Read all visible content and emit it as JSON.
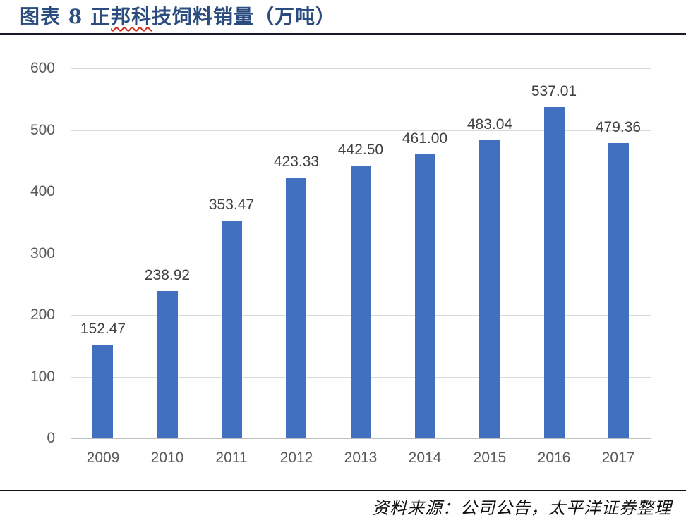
{
  "header": {
    "title_prefix": "图表 8 正",
    "title_misspelled": "邦科",
    "title_suffix": "技饲料销量（万吨）",
    "title_full": "图表 8 正邦科技饲料销量（万吨）"
  },
  "chart_data": {
    "type": "bar",
    "title": "图表 8 正邦科技饲料销量（万吨）",
    "unit": "万吨",
    "categories": [
      "2009",
      "2010",
      "2011",
      "2012",
      "2013",
      "2014",
      "2015",
      "2016",
      "2017"
    ],
    "values": [
      152.47,
      238.92,
      353.47,
      423.33,
      442.5,
      461.0,
      483.04,
      537.01,
      479.36
    ],
    "data_labels": [
      "152.47",
      "238.92",
      "353.47",
      "423.33",
      "442.50",
      "461.00",
      "483.04",
      "537.01",
      "479.36"
    ],
    "xlabel": "",
    "ylabel": "",
    "ylim": [
      0,
      600
    ],
    "yticks": [
      0,
      100,
      200,
      300,
      400,
      500,
      600
    ],
    "grid": true,
    "legend": false,
    "bar_color": "#4170c0",
    "gridline_color": "#d9d9d9",
    "axis_label_color": "#595959",
    "data_label_color": "#404040"
  },
  "footer": {
    "source": "资料来源：公司公告，太平洋证券整理"
  },
  "colors": {
    "title": "#2b4c7e",
    "title_rule": "#15192b",
    "misspell_underline": "#d03020",
    "background": "#ffffff"
  }
}
